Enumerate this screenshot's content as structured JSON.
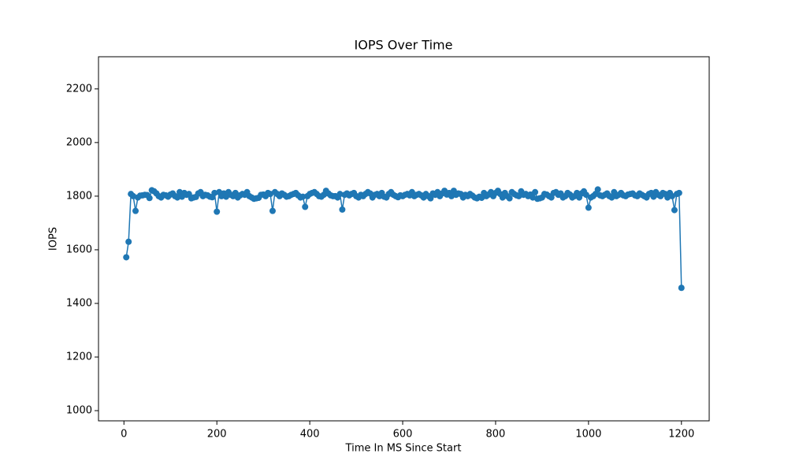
{
  "chart_data": {
    "type": "line",
    "title": "IOPS Over Time",
    "x_label": "Time In MS Since Start",
    "y_label": "IOPS",
    "xlim": [
      -54.75,
      1259.75
    ],
    "ylim": [
      962,
      2320
    ],
    "xticks": [
      0,
      200,
      400,
      600,
      800,
      1000,
      1200
    ],
    "yticks": [
      1000,
      1200,
      1400,
      1600,
      1800,
      2000,
      2200
    ],
    "grid": false,
    "x": [
      5,
      10,
      15,
      20,
      25,
      30,
      35,
      40,
      45,
      50,
      55,
      60,
      65,
      70,
      75,
      80,
      85,
      90,
      95,
      100,
      105,
      110,
      115,
      120,
      125,
      130,
      135,
      140,
      145,
      150,
      155,
      160,
      165,
      170,
      175,
      180,
      185,
      190,
      195,
      200,
      205,
      210,
      215,
      220,
      225,
      230,
      235,
      240,
      245,
      250,
      255,
      260,
      265,
      270,
      275,
      280,
      285,
      290,
      295,
      300,
      305,
      310,
      315,
      320,
      325,
      330,
      335,
      340,
      345,
      350,
      355,
      360,
      365,
      370,
      375,
      380,
      385,
      390,
      395,
      400,
      405,
      410,
      415,
      420,
      425,
      430,
      435,
      440,
      445,
      450,
      455,
      460,
      465,
      470,
      475,
      480,
      485,
      490,
      495,
      500,
      505,
      510,
      515,
      520,
      525,
      530,
      535,
      540,
      545,
      550,
      555,
      560,
      565,
      570,
      575,
      580,
      585,
      590,
      595,
      600,
      605,
      610,
      615,
      620,
      625,
      630,
      635,
      640,
      645,
      650,
      655,
      660,
      665,
      670,
      675,
      680,
      685,
      690,
      695,
      700,
      705,
      710,
      715,
      720,
      725,
      730,
      735,
      740,
      745,
      750,
      755,
      760,
      765,
      770,
      775,
      780,
      785,
      790,
      795,
      800,
      805,
      810,
      815,
      820,
      825,
      830,
      835,
      840,
      845,
      850,
      855,
      860,
      865,
      870,
      875,
      880,
      885,
      890,
      895,
      900,
      905,
      910,
      915,
      920,
      925,
      930,
      935,
      940,
      945,
      950,
      955,
      960,
      965,
      970,
      975,
      980,
      985,
      990,
      995,
      1000,
      1005,
      1010,
      1015,
      1020,
      1025,
      1030,
      1035,
      1040,
      1045,
      1050,
      1055,
      1060,
      1065,
      1070,
      1075,
      1080,
      1085,
      1090,
      1095,
      1100,
      1105,
      1110,
      1115,
      1120,
      1125,
      1130,
      1135,
      1140,
      1145,
      1150,
      1155,
      1160,
      1165,
      1170,
      1175,
      1180,
      1185,
      1190,
      1195,
      1200
    ],
    "series": [
      {
        "name": "IOPS",
        "color": "#1f77b4",
        "values": [
          1572,
          1630,
          1808,
          1800,
          1745,
          1795,
          1802,
          1803,
          1805,
          1804,
          1793,
          1822,
          1818,
          1810,
          1800,
          1795,
          1805,
          1803,
          1798,
          1806,
          1810,
          1800,
          1795,
          1815,
          1798,
          1812,
          1805,
          1808,
          1792,
          1795,
          1797,
          1810,
          1815,
          1800,
          1805,
          1803,
          1798,
          1796,
          1812,
          1742,
          1815,
          1800,
          1810,
          1798,
          1815,
          1805,
          1800,
          1812,
          1795,
          1803,
          1808,
          1805,
          1815,
          1800,
          1795,
          1790,
          1792,
          1794,
          1805,
          1806,
          1800,
          1812,
          1808,
          1745,
          1815,
          1808,
          1800,
          1810,
          1805,
          1798,
          1800,
          1805,
          1808,
          1812,
          1803,
          1795,
          1798,
          1760,
          1800,
          1808,
          1812,
          1815,
          1808,
          1800,
          1798,
          1805,
          1820,
          1810,
          1803,
          1800,
          1800,
          1795,
          1808,
          1750,
          1805,
          1810,
          1803,
          1808,
          1812,
          1800,
          1795,
          1805,
          1800,
          1808,
          1815,
          1810,
          1795,
          1805,
          1808,
          1800,
          1812,
          1798,
          1795,
          1808,
          1815,
          1805,
          1800,
          1796,
          1803,
          1800,
          1805,
          1808,
          1803,
          1815,
          1800,
          1805,
          1808,
          1803,
          1795,
          1808,
          1800,
          1792,
          1810,
          1805,
          1815,
          1800,
          1810,
          1820,
          1806,
          1812,
          1800,
          1820,
          1805,
          1810,
          1808,
          1795,
          1805,
          1800,
          1808,
          1802,
          1795,
          1792,
          1798,
          1794,
          1812,
          1800,
          1806,
          1815,
          1800,
          1812,
          1820,
          1808,
          1795,
          1812,
          1800,
          1792,
          1815,
          1808,
          1803,
          1800,
          1818,
          1805,
          1808,
          1800,
          1806,
          1795,
          1815,
          1790,
          1792,
          1795,
          1808,
          1806,
          1800,
          1795,
          1812,
          1815,
          1805,
          1810,
          1795,
          1800,
          1812,
          1806,
          1795,
          1800,
          1812,
          1795,
          1810,
          1818,
          1805,
          1757,
          1795,
          1800,
          1808,
          1825,
          1803,
          1800,
          1805,
          1810,
          1800,
          1795,
          1815,
          1800,
          1805,
          1812,
          1803,
          1800,
          1806,
          1808,
          1810,
          1803,
          1800,
          1810,
          1805,
          1800,
          1795,
          1808,
          1812,
          1798,
          1815,
          1805,
          1800,
          1812,
          1808,
          1795,
          1812,
          1800,
          1748,
          1808,
          1812,
          1458
        ]
      }
    ]
  }
}
